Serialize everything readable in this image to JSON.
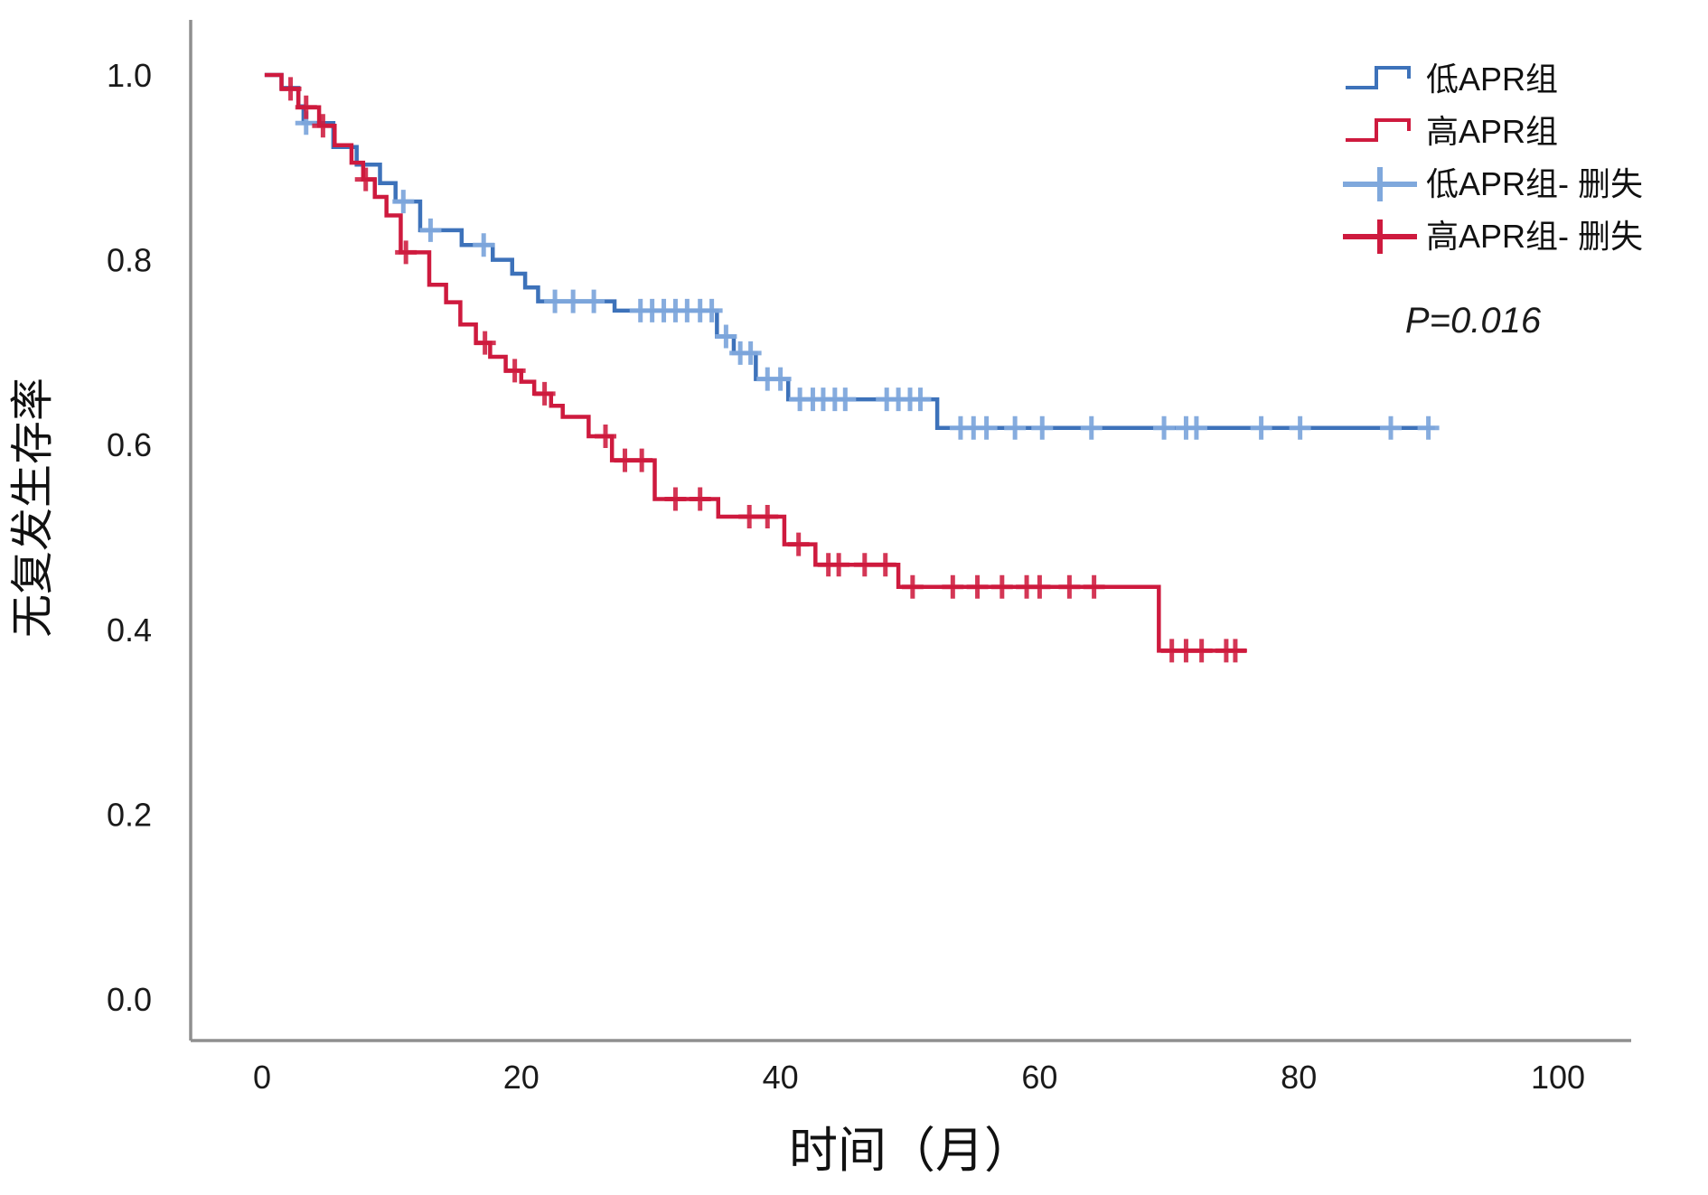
{
  "figure": {
    "background": "#ffffff",
    "axis_color": "#8f8f8f",
    "text_color": "#1a1a1a"
  },
  "chart_data": {
    "type": "line",
    "subtype": "kaplan-meier-step",
    "title": "",
    "xlabel": "时间（月）",
    "ylabel": "无复发生存率",
    "annotation": "P=0.016",
    "grid": false,
    "legend_position": "top-right",
    "x_ticks": [
      0,
      20,
      40,
      60,
      80,
      100
    ],
    "y_ticks": [
      1.0,
      0.8,
      0.6,
      0.4,
      0.2,
      0.0
    ],
    "xlim": [
      -5.5,
      105.6
    ],
    "ylim": [
      -0.045,
      1.06
    ],
    "legend": [
      {
        "label": "低APR组",
        "marker": "step-line",
        "color": "#3D72BA"
      },
      {
        "label": "高APR组",
        "marker": "step-line",
        "color": "#CE1A3E"
      },
      {
        "label": "低APR组- 删失",
        "marker": "plus-line",
        "color": "#7FA8DC"
      },
      {
        "label": "高APR组- 删失",
        "marker": "plus-line",
        "color": "#CE1A3E"
      }
    ],
    "series": [
      {
        "name": "低APR组",
        "color": "#3D72BA",
        "censor_color": "#7FA8DC",
        "start": 0.2,
        "end": 90.5,
        "drops": [
          [
            1.5,
            0.986
          ],
          [
            2.8,
            0.966
          ],
          [
            3.2,
            0.948
          ],
          [
            5.5,
            0.922
          ],
          [
            7.3,
            0.903
          ],
          [
            9.1,
            0.883
          ],
          [
            10.3,
            0.863
          ],
          [
            12.2,
            0.832
          ],
          [
            15.4,
            0.816
          ],
          [
            17.8,
            0.8
          ],
          [
            19.3,
            0.785
          ],
          [
            20.3,
            0.77
          ],
          [
            21.3,
            0.755
          ],
          [
            27.2,
            0.745
          ],
          [
            35.1,
            0.717
          ],
          [
            36.4,
            0.699
          ],
          [
            38.1,
            0.671
          ],
          [
            40.6,
            0.649
          ],
          [
            52.1,
            0.618
          ]
        ],
        "censors": [
          [
            3.4,
            0.948
          ],
          [
            10.9,
            0.863
          ],
          [
            13.0,
            0.832
          ],
          [
            17.1,
            0.816
          ],
          [
            22.6,
            0.755
          ],
          [
            24.0,
            0.755
          ],
          [
            25.6,
            0.755
          ],
          [
            29.2,
            0.745
          ],
          [
            30.1,
            0.745
          ],
          [
            31.0,
            0.745
          ],
          [
            31.9,
            0.745
          ],
          [
            32.8,
            0.745
          ],
          [
            33.8,
            0.745
          ],
          [
            34.7,
            0.745
          ],
          [
            35.8,
            0.717
          ],
          [
            36.9,
            0.699
          ],
          [
            37.7,
            0.699
          ],
          [
            39.0,
            0.671
          ],
          [
            40.0,
            0.671
          ],
          [
            41.5,
            0.649
          ],
          [
            42.5,
            0.649
          ],
          [
            43.3,
            0.649
          ],
          [
            44.2,
            0.649
          ],
          [
            45.0,
            0.649
          ],
          [
            48.2,
            0.649
          ],
          [
            49.1,
            0.649
          ],
          [
            50.0,
            0.649
          ],
          [
            50.8,
            0.649
          ],
          [
            53.9,
            0.618
          ],
          [
            54.9,
            0.618
          ],
          [
            55.9,
            0.618
          ],
          [
            58.1,
            0.618
          ],
          [
            60.2,
            0.618
          ],
          [
            64.0,
            0.618
          ],
          [
            69.6,
            0.618
          ],
          [
            71.3,
            0.618
          ],
          [
            72.1,
            0.618
          ],
          [
            77.1,
            0.618
          ],
          [
            80.1,
            0.618
          ],
          [
            87.1,
            0.618
          ],
          [
            90.0,
            0.618
          ]
        ]
      },
      {
        "name": "高APR组",
        "color": "#CE1A3E",
        "censor_color": "#CE1A3E",
        "start": 0.2,
        "end": 76.0,
        "drops": [
          [
            1.5,
            0.985
          ],
          [
            2.8,
            0.965
          ],
          [
            4.4,
            0.945
          ],
          [
            5.6,
            0.924
          ],
          [
            6.9,
            0.905
          ],
          [
            7.8,
            0.887
          ],
          [
            8.7,
            0.868
          ],
          [
            9.6,
            0.848
          ],
          [
            10.7,
            0.808
          ],
          [
            12.9,
            0.773
          ],
          [
            14.2,
            0.754
          ],
          [
            15.3,
            0.73
          ],
          [
            16.5,
            0.71
          ],
          [
            17.6,
            0.695
          ],
          [
            18.8,
            0.68
          ],
          [
            20.0,
            0.668
          ],
          [
            21.0,
            0.655
          ],
          [
            22.3,
            0.642
          ],
          [
            23.2,
            0.63
          ],
          [
            25.2,
            0.609
          ],
          [
            27.0,
            0.583
          ],
          [
            30.3,
            0.541
          ],
          [
            35.2,
            0.522
          ],
          [
            40.3,
            0.492
          ],
          [
            42.7,
            0.47
          ],
          [
            49.1,
            0.446
          ],
          [
            69.2,
            0.377
          ]
        ],
        "censors": [
          [
            2.2,
            0.985
          ],
          [
            3.4,
            0.965
          ],
          [
            4.7,
            0.945
          ],
          [
            8.0,
            0.887
          ],
          [
            11.1,
            0.808
          ],
          [
            17.2,
            0.71
          ],
          [
            19.5,
            0.68
          ],
          [
            21.8,
            0.655
          ],
          [
            26.5,
            0.609
          ],
          [
            28.0,
            0.583
          ],
          [
            29.3,
            0.583
          ],
          [
            31.9,
            0.541
          ],
          [
            33.8,
            0.541
          ],
          [
            37.6,
            0.522
          ],
          [
            39.0,
            0.522
          ],
          [
            41.4,
            0.492
          ],
          [
            43.7,
            0.47
          ],
          [
            44.5,
            0.47
          ],
          [
            46.5,
            0.47
          ],
          [
            48.1,
            0.47
          ],
          [
            50.2,
            0.446
          ],
          [
            53.3,
            0.446
          ],
          [
            55.2,
            0.446
          ],
          [
            57.1,
            0.446
          ],
          [
            59.0,
            0.446
          ],
          [
            60.0,
            0.446
          ],
          [
            62.3,
            0.446
          ],
          [
            64.2,
            0.446
          ],
          [
            70.2,
            0.377
          ],
          [
            71.3,
            0.377
          ],
          [
            72.5,
            0.377
          ],
          [
            74.4,
            0.377
          ],
          [
            75.1,
            0.377
          ]
        ]
      }
    ]
  }
}
